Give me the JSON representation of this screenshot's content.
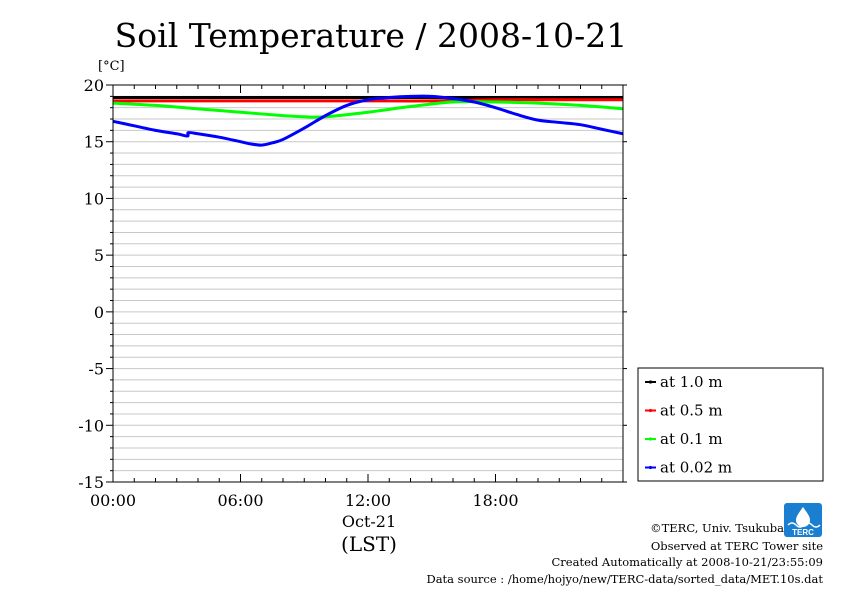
{
  "chart_data": {
    "type": "line",
    "title": "Soil Temperature / 2008-10-21",
    "ylabel": "[°C]",
    "ylim": [
      -15,
      20
    ],
    "xlim_hours": [
      0,
      24
    ],
    "y_ticks": [
      20,
      15,
      10,
      5,
      0,
      -5,
      -10,
      -15
    ],
    "y_tick_labels": [
      "20",
      "15",
      "10",
      "5",
      "0",
      "-5",
      "-10",
      "-15"
    ],
    "x_ticks_hours": [
      0,
      6,
      12,
      18
    ],
    "x_tick_labels": [
      "00:00",
      "06:00",
      "12:00",
      "18:00"
    ],
    "x_date_label": "Oct-21",
    "x_timezone_label": "(LST)",
    "grid": "horizontal minor every 1 °C",
    "legend_position": "right-bottom",
    "series": [
      {
        "name": "at 1.0 m",
        "color": "#000000",
        "x": [
          0,
          3,
          6,
          9,
          12,
          15,
          18,
          21,
          24
        ],
        "y": [
          18.9,
          18.9,
          18.9,
          18.9,
          18.9,
          18.9,
          18.9,
          18.9,
          18.9
        ]
      },
      {
        "name": "at 0.5 m",
        "color": "#ff0000",
        "x": [
          0,
          3,
          6,
          9,
          12,
          15,
          18,
          21,
          24
        ],
        "y": [
          18.6,
          18.6,
          18.6,
          18.6,
          18.6,
          18.6,
          18.7,
          18.7,
          18.7
        ]
      },
      {
        "name": "at 0.1 m",
        "color": "#00ff00",
        "x": [
          0,
          2,
          4,
          6,
          8,
          9,
          10,
          12,
          14,
          16,
          18,
          20,
          22,
          24
        ],
        "y": [
          18.4,
          18.2,
          17.9,
          17.6,
          17.3,
          17.2,
          17.2,
          17.6,
          18.1,
          18.5,
          18.5,
          18.4,
          18.2,
          17.9
        ]
      },
      {
        "name": "at 0.02 m",
        "color": "#0000ff",
        "x": [
          0,
          1,
          2,
          3,
          3.5,
          3.55,
          4,
          5,
          6,
          6.5,
          7,
          7.5,
          8,
          9,
          10,
          11,
          12,
          13,
          14,
          15,
          16,
          17,
          18,
          19,
          20,
          21,
          22,
          23,
          24
        ],
        "y": [
          16.8,
          16.4,
          16.0,
          15.7,
          15.5,
          15.8,
          15.7,
          15.4,
          15.0,
          14.8,
          14.7,
          14.9,
          15.2,
          16.2,
          17.3,
          18.2,
          18.7,
          18.9,
          19.0,
          19.0,
          18.8,
          18.5,
          18.0,
          17.4,
          16.9,
          16.7,
          16.5,
          16.1,
          15.7
        ]
      }
    ]
  },
  "credits": {
    "copyright": "©TERC, Univ. Tsukuba",
    "observed": "Observed at TERC Tower site",
    "created": "Created Automatically at 2008-10-21/23:55:09",
    "source": "Data source : /home/hojyo/new/TERC-data/sorted_data/MET.10s.dat"
  },
  "logo": {
    "text": "TERC",
    "color": "#1a7fd0"
  }
}
